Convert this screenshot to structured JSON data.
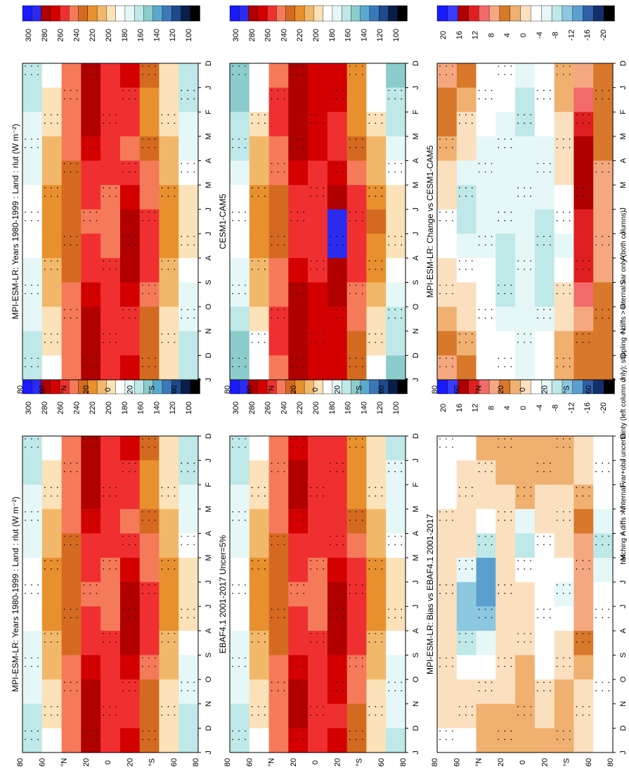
{
  "figure": {
    "footnote": "hatching = diffs > internal var+obs uncertainty (left column only); stippling = diffs > internal var only (both columns)"
  },
  "axes": {
    "month_labels": [
      "D",
      "J",
      "F",
      "M",
      "A",
      "M",
      "J",
      "J",
      "A",
      "S",
      "O",
      "N",
      "D",
      "J"
    ],
    "lat_labels": [
      "80",
      "60",
      "°N",
      "20",
      "0",
      "20",
      "°S",
      "60",
      "80"
    ]
  },
  "colorbars": {
    "absolute": {
      "labels": [
        "300",
        "280",
        "260",
        "240",
        "220",
        "200",
        "180",
        "160",
        "140",
        "120",
        "100"
      ]
    },
    "difference": {
      "labels": [
        "20",
        "16",
        "12",
        "8",
        "4",
        "0",
        "-4",
        "-8",
        "-12",
        "-16",
        "-20"
      ]
    }
  },
  "colors": {
    "absolute_scale": [
      "#1a1aff",
      "#2b2bf0",
      "#b00000",
      "#d40000",
      "#f03030",
      "#f57a5a",
      "#d46a20",
      "#e8902e",
      "#f2b86a",
      "#fbe2b8",
      "#ffffff",
      "#e6f7f7",
      "#bfe8e8",
      "#8ccccc",
      "#5aa9cf",
      "#3a78b8",
      "#1e4a8c",
      "#0a1e4a",
      "#000000"
    ],
    "difference_scale": [
      "#1a1aff",
      "#3a3aff",
      "#b00000",
      "#e02020",
      "#f26a6a",
      "#f5a880",
      "#d8782a",
      "#f0b070",
      "#fbe0c0",
      "#ffffff",
      "#e6f7f7",
      "#bfe8e8",
      "#8cc8e0",
      "#5aa0cf",
      "#2f5fa8",
      "#14306c",
      "#000000"
    ]
  },
  "panels": [
    {
      "id": "left-top",
      "title": "MPI-ESM-LR: Years 1980-1999 : Land : rlut (W m⁻²)",
      "kind": "absolute"
    },
    {
      "id": "left-mid",
      "title": "EBAF4.1 2001-2017 Uncer=5%",
      "kind": "absolute"
    },
    {
      "id": "left-bot",
      "title": "MPI-ESM-LR: Bias vs EBAF4.1 2001-2017",
      "kind": "difference"
    },
    {
      "id": "right-top",
      "title": "MPI-ESM-LR: Years 1980-1999 : Land : rlut (W m⁻²)",
      "kind": "absolute"
    },
    {
      "id": "right-mid",
      "title": "CESM1-CAM5",
      "kind": "absolute"
    },
    {
      "id": "right-bot",
      "title": "MPI-ESM-LR: Change vs CESM1-CAM5",
      "kind": "difference"
    }
  ],
  "chart_data": [
    {
      "type": "heatmap",
      "title": "MPI-ESM-LR: Years 1980-1999 : Land : rlut (W m⁻²)",
      "x": [
        "D",
        "J",
        "F",
        "M",
        "A",
        "M",
        "J",
        "J",
        "A",
        "S",
        "O",
        "N",
        "D",
        "J"
      ],
      "y": [
        -90,
        -60,
        -30,
        -20,
        0,
        20,
        30,
        60,
        90
      ],
      "colorbar_levels": [
        300,
        280,
        260,
        240,
        220,
        200,
        180,
        160,
        140,
        120,
        100
      ],
      "values": [
        [
          160,
          165,
          170,
          175,
          180,
          185,
          190,
          190,
          185,
          180,
          175,
          170,
          165,
          160
        ],
        [
          190,
          195,
          200,
          205,
          210,
          215,
          220,
          220,
          215,
          210,
          205,
          200,
          195,
          190
        ],
        [
          245,
          250,
          250,
          245,
          240,
          235,
          230,
          230,
          235,
          240,
          245,
          250,
          250,
          245
        ],
        [
          270,
          275,
          275,
          270,
          265,
          255,
          250,
          250,
          255,
          265,
          270,
          275,
          275,
          270
        ],
        [
          255,
          260,
          262,
          260,
          255,
          250,
          245,
          245,
          250,
          255,
          260,
          262,
          260,
          255
        ],
        [
          265,
          260,
          255,
          250,
          250,
          262,
          275,
          278,
          278,
          270,
          262,
          260,
          262,
          265
        ],
        [
          230,
          228,
          225,
          228,
          235,
          245,
          255,
          258,
          255,
          248,
          240,
          235,
          230,
          230
        ],
        [
          195,
          195,
          198,
          205,
          212,
          220,
          225,
          225,
          220,
          212,
          205,
          198,
          195,
          195
        ],
        [
          170,
          170,
          172,
          175,
          185,
          195,
          200,
          200,
          195,
          185,
          175,
          172,
          170,
          170
        ]
      ]
    },
    {
      "type": "heatmap",
      "title": "EBAF4.1 2001-2017 Uncer=5%",
      "x": [
        "D",
        "J",
        "F",
        "M",
        "A",
        "M",
        "J",
        "J",
        "A",
        "S",
        "O",
        "N",
        "D",
        "J"
      ],
      "y": [
        -90,
        -60,
        -30,
        -20,
        0,
        20,
        30,
        60,
        90
      ],
      "colorbar_levels": [
        300,
        280,
        260,
        240,
        220,
        200,
        180,
        160,
        140,
        120,
        100
      ],
      "values": [
        [
          165,
          168,
          172,
          176,
          180,
          185,
          190,
          190,
          186,
          180,
          176,
          170,
          166,
          165
        ],
        [
          192,
          196,
          200,
          205,
          210,
          216,
          220,
          220,
          216,
          210,
          205,
          200,
          196,
          192
        ],
        [
          243,
          248,
          250,
          246,
          240,
          234,
          230,
          230,
          234,
          240,
          246,
          250,
          248,
          243
        ],
        [
          268,
          272,
          275,
          270,
          262,
          255,
          250,
          250,
          255,
          262,
          270,
          275,
          272,
          268
        ],
        [
          252,
          258,
          260,
          258,
          254,
          248,
          244,
          244,
          248,
          254,
          258,
          260,
          258,
          252
        ],
        [
          262,
          258,
          254,
          250,
          252,
          264,
          276,
          280,
          280,
          272,
          264,
          260,
          262,
          262
        ],
        [
          228,
          226,
          224,
          228,
          236,
          246,
          256,
          258,
          256,
          250,
          242,
          236,
          230,
          228
        ],
        [
          196,
          196,
          198,
          205,
          212,
          220,
          226,
          226,
          220,
          212,
          205,
          198,
          196,
          196
        ],
        [
          172,
          172,
          174,
          178,
          186,
          196,
          202,
          202,
          196,
          186,
          178,
          174,
          172,
          172
        ]
      ]
    },
    {
      "type": "heatmap",
      "title": "MPI-ESM-LR: Bias vs EBAF4.1 2001-2017",
      "x": [
        "D",
        "J",
        "F",
        "M",
        "A",
        "M",
        "J",
        "J",
        "A",
        "S",
        "O",
        "N",
        "D",
        "J"
      ],
      "y": [
        -90,
        -60,
        -30,
        -20,
        0,
        20,
        30,
        60,
        90
      ],
      "colorbar_levels": [
        20,
        16,
        12,
        8,
        4,
        0,
        -4,
        -8,
        -12,
        -16,
        -20
      ],
      "values": [
        [
          -4,
          -3,
          -2,
          -1,
          0,
          0,
          0,
          0,
          -1,
          0,
          -1,
          0,
          -1,
          -4
        ],
        [
          -2,
          -1,
          0,
          0,
          0,
          -2,
          -8,
          -12,
          -10,
          -4,
          0,
          0,
          -2,
          -2
        ],
        [
          2,
          2,
          0,
          0,
          -4,
          -10,
          -14,
          -12,
          -8,
          -4,
          0,
          2,
          2,
          2
        ],
        [
          2,
          3,
          0,
          0,
          0,
          0,
          0,
          0,
          0,
          0,
          0,
          0,
          3,
          2
        ],
        [
          3,
          2,
          2,
          2,
          -12,
          -4,
          0,
          0,
          0,
          2,
          2,
          2,
          2,
          3
        ],
        [
          3,
          2,
          1,
          0,
          -2,
          -2,
          -1,
          -2,
          -2,
          -2,
          -2,
          0,
          0,
          3
        ],
        [
          2,
          2,
          2,
          0,
          0,
          -2,
          -4,
          -4,
          -2,
          0,
          2,
          2,
          2,
          2
        ],
        [
          -1,
          0,
          2,
          4,
          6,
          8,
          8,
          8,
          6,
          4,
          2,
          0,
          -1,
          -1
        ],
        [
          -2,
          -2,
          -2,
          -4,
          -8,
          -6,
          -4,
          -2,
          -2,
          -2,
          -2,
          -2,
          -2,
          -2
        ]
      ]
    },
    {
      "type": "heatmap",
      "title": "MPI-ESM-LR: Years 1980-1999 : Land : rlut (W m⁻²)",
      "x": [
        "D",
        "J",
        "F",
        "M",
        "A",
        "M",
        "J",
        "J",
        "A",
        "S",
        "O",
        "N",
        "D",
        "J"
      ],
      "y": [
        -90,
        -60,
        -30,
        -20,
        0,
        20,
        30,
        60,
        90
      ],
      "colorbar_levels": [
        300,
        280,
        260,
        240,
        220,
        200,
        180,
        160,
        140,
        120,
        100
      ],
      "values": [
        [
          160,
          165,
          170,
          175,
          180,
          185,
          190,
          190,
          185,
          180,
          175,
          170,
          165,
          160
        ],
        [
          190,
          195,
          200,
          205,
          210,
          215,
          220,
          220,
          215,
          210,
          205,
          200,
          195,
          190
        ],
        [
          245,
          250,
          250,
          245,
          240,
          235,
          230,
          230,
          235,
          240,
          245,
          250,
          250,
          245
        ],
        [
          270,
          275,
          275,
          270,
          265,
          255,
          250,
          250,
          255,
          265,
          270,
          275,
          275,
          270
        ],
        [
          255,
          260,
          262,
          260,
          255,
          250,
          245,
          245,
          250,
          255,
          260,
          262,
          260,
          255
        ],
        [
          265,
          260,
          255,
          250,
          250,
          262,
          275,
          278,
          278,
          270,
          262,
          260,
          262,
          265
        ],
        [
          230,
          228,
          225,
          228,
          235,
          245,
          255,
          258,
          255,
          248,
          240,
          235,
          230,
          230
        ],
        [
          195,
          195,
          198,
          205,
          212,
          220,
          225,
          225,
          220,
          212,
          205,
          198,
          195,
          195
        ],
        [
          170,
          170,
          172,
          175,
          185,
          195,
          200,
          200,
          195,
          185,
          175,
          172,
          170,
          170
        ]
      ]
    },
    {
      "type": "heatmap",
      "title": "CESM1-CAM5",
      "x": [
        "D",
        "J",
        "F",
        "M",
        "A",
        "M",
        "J",
        "J",
        "A",
        "S",
        "O",
        "N",
        "D",
        "J"
      ],
      "y": [
        -90,
        -60,
        -30,
        -20,
        0,
        20,
        30,
        60,
        90
      ],
      "colorbar_levels": [
        300,
        280,
        260,
        240,
        220,
        200,
        180,
        160,
        140,
        120,
        100
      ],
      "values": [
        [
          150,
          155,
          160,
          168,
          176,
          184,
          190,
          190,
          186,
          178,
          170,
          162,
          155,
          150
        ],
        [
          185,
          190,
          196,
          204,
          212,
          220,
          226,
          226,
          220,
          212,
          204,
          196,
          190,
          185
        ],
        [
          248,
          252,
          254,
          250,
          246,
          240,
          236,
          236,
          240,
          246,
          250,
          254,
          252,
          248
        ],
        [
          272,
          278,
          280,
          276,
          270,
          262,
          256,
          256,
          262,
          270,
          276,
          280,
          278,
          272
        ],
        [
          262,
          266,
          268,
          266,
          262,
          256,
          252,
          252,
          256,
          262,
          266,
          268,
          266,
          262
        ],
        [
          268,
          264,
          260,
          256,
          256,
          268,
          282,
          286,
          286,
          278,
          268,
          264,
          266,
          268
        ],
        [
          228,
          226,
          224,
          228,
          236,
          248,
          258,
          262,
          258,
          250,
          242,
          236,
          230,
          228
        ],
        [
          192,
          192,
          196,
          204,
          212,
          220,
          228,
          228,
          222,
          214,
          206,
          198,
          194,
          192
        ],
        [
          160,
          160,
          164,
          170,
          180,
          192,
          200,
          200,
          194,
          182,
          170,
          164,
          160,
          160
        ]
      ]
    },
    {
      "type": "heatmap",
      "title": "MPI-ESM-LR: Change vs CESM1-CAM5",
      "x": [
        "D",
        "J",
        "F",
        "M",
        "A",
        "M",
        "J",
        "J",
        "A",
        "S",
        "O",
        "N",
        "D",
        "J"
      ],
      "y": [
        -90,
        -60,
        -30,
        -20,
        0,
        20,
        30,
        60,
        90
      ],
      "colorbar_levels": [
        20,
        16,
        12,
        8,
        4,
        0,
        -4,
        -8,
        -12,
        -16,
        -20
      ],
      "values": [
        [
          8,
          6,
          4,
          4,
          2,
          0,
          -2,
          -4,
          -2,
          0,
          2,
          4,
          6,
          8
        ],
        [
          4,
          4,
          2,
          0,
          -2,
          -6,
          -8,
          -6,
          -4,
          -2,
          0,
          2,
          4,
          4
        ],
        [
          -2,
          -2,
          -2,
          -4,
          -6,
          -6,
          -6,
          -6,
          -4,
          -2,
          -2,
          -2,
          -2,
          -2
        ],
        [
          -2,
          -2,
          -4,
          -4,
          -4,
          -6,
          -6,
          -6,
          -8,
          -8,
          -6,
          -4,
          -2,
          -2
        ],
        [
          -6,
          -6,
          -8,
          -6,
          -6,
          -4,
          -4,
          -4,
          -4,
          -6,
          -6,
          -6,
          -6,
          -6
        ],
        [
          -2,
          -2,
          -2,
          -4,
          -4,
          -6,
          -6,
          -8,
          -8,
          -8,
          -6,
          -4,
          -2,
          -2
        ],
        [
          2,
          2,
          2,
          0,
          0,
          -2,
          -2,
          -4,
          -4,
          -2,
          0,
          2,
          2,
          2
        ],
        [
          6,
          8,
          12,
          14,
          16,
          16,
          14,
          12,
          12,
          12,
          8,
          6,
          6,
          6
        ],
        [
          4,
          4,
          4,
          4,
          6,
          8,
          8,
          8,
          8,
          6,
          6,
          4,
          4,
          4
        ]
      ]
    }
  ]
}
